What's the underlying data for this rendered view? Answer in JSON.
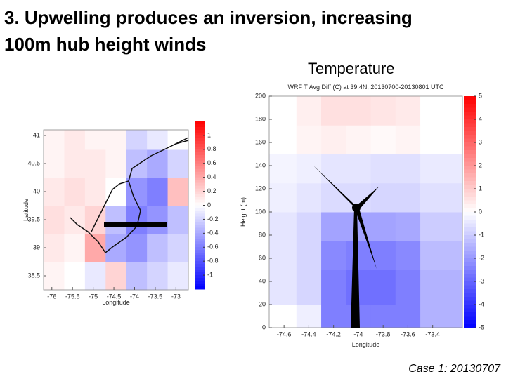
{
  "slide": {
    "title_lines": [
      "3. Upwelling produces an inversion, increasing",
      "100m hub height winds"
    ],
    "panel_label": "Temperature",
    "footer": "Case 1: 20130707"
  },
  "chart_data": [
    {
      "type": "heatmap",
      "xlabel": "Longitude",
      "ylabel": "Latitude",
      "xlim": [
        -76.2,
        -72.7
      ],
      "ylim": [
        38.25,
        41.1
      ],
      "xticks": [
        -76,
        -75.5,
        -75,
        -74.5,
        -74,
        -73.5,
        -73
      ],
      "yticks": [
        38.5,
        39,
        39.5,
        40,
        40.5,
        41
      ],
      "x_edges": [
        -76.2,
        -75.7,
        -75.2,
        -74.7,
        -74.2,
        -73.7,
        -73.2,
        -72.7
      ],
      "y_edges": [
        38.25,
        38.75,
        39.25,
        39.75,
        40.25,
        40.75,
        41.1
      ],
      "values": [
        [
          0.05,
          0,
          -0.1,
          0.2,
          -0.3,
          -0.2,
          -0.1
        ],
        [
          0.1,
          0.05,
          0.4,
          -0.4,
          -0.5,
          -0.3,
          -0.2
        ],
        [
          0.15,
          0.1,
          0.2,
          -0.3,
          -0.6,
          -0.5,
          -0.3
        ],
        [
          0.1,
          0.15,
          0.1,
          0,
          -0.5,
          -0.6,
          0.3
        ],
        [
          0.05,
          0.1,
          0.1,
          0.05,
          -0.3,
          -0.4,
          -0.2
        ],
        [
          0.05,
          0.1,
          0.05,
          0.05,
          -0.2,
          -0.1,
          0
        ]
      ],
      "clim": [
        -1.2,
        1.2
      ],
      "cticks": [
        1,
        0.8,
        0.6,
        0.4,
        0.2,
        0,
        -0.2,
        -0.4,
        -0.6,
        -0.8,
        -1
      ]
    },
    {
      "type": "heatmap",
      "title": "WRF T Avg Diff (C) at 39.4N, 20130700-20130801 UTC",
      "xlabel": "Longitude",
      "ylabel": "Height (m)",
      "xlim": [
        -74.72,
        -73.16
      ],
      "ylim": [
        0,
        200
      ],
      "xticks": [
        -74.6,
        -74.4,
        -74.2,
        -74,
        -73.8,
        -73.6,
        -73.4
      ],
      "yticks": [
        0,
        20,
        40,
        60,
        80,
        100,
        120,
        140,
        160,
        180,
        200
      ],
      "x_edges": [
        -74.72,
        -74.5,
        -74.3,
        -74.1,
        -73.9,
        -73.7,
        -73.5,
        -73.16
      ],
      "y_edges": [
        0,
        20,
        50,
        75,
        100,
        125,
        150,
        175,
        200
      ],
      "values": [
        [
          0,
          -0.3,
          -2.5,
          -2.5,
          -2.5,
          -2.5,
          -1.5
        ],
        [
          -0.5,
          -0.8,
          -2.5,
          -2.8,
          -2.8,
          -2.5,
          -1.5
        ],
        [
          -0.5,
          -0.8,
          -2.3,
          -2.5,
          -2.5,
          -2.3,
          -1.3
        ],
        [
          -0.5,
          -0.8,
          -1.8,
          -1.8,
          -1.8,
          -1.7,
          -1
        ],
        [
          -0.3,
          -0.5,
          -0.7,
          -0.7,
          -0.8,
          -0.8,
          -0.6
        ],
        [
          -0.2,
          -0.3,
          -0.5,
          -0.5,
          -0.6,
          -0.6,
          -0.4
        ],
        [
          0,
          0.2,
          0.3,
          0.2,
          0.1,
          0.2,
          0
        ],
        [
          0,
          0.3,
          0.6,
          0.6,
          0.5,
          0.4,
          0
        ]
      ],
      "clim": [
        -5,
        5
      ],
      "cticks": [
        5,
        4,
        3,
        2,
        1,
        0,
        -1,
        -2,
        -3,
        -4,
        -5
      ]
    }
  ]
}
